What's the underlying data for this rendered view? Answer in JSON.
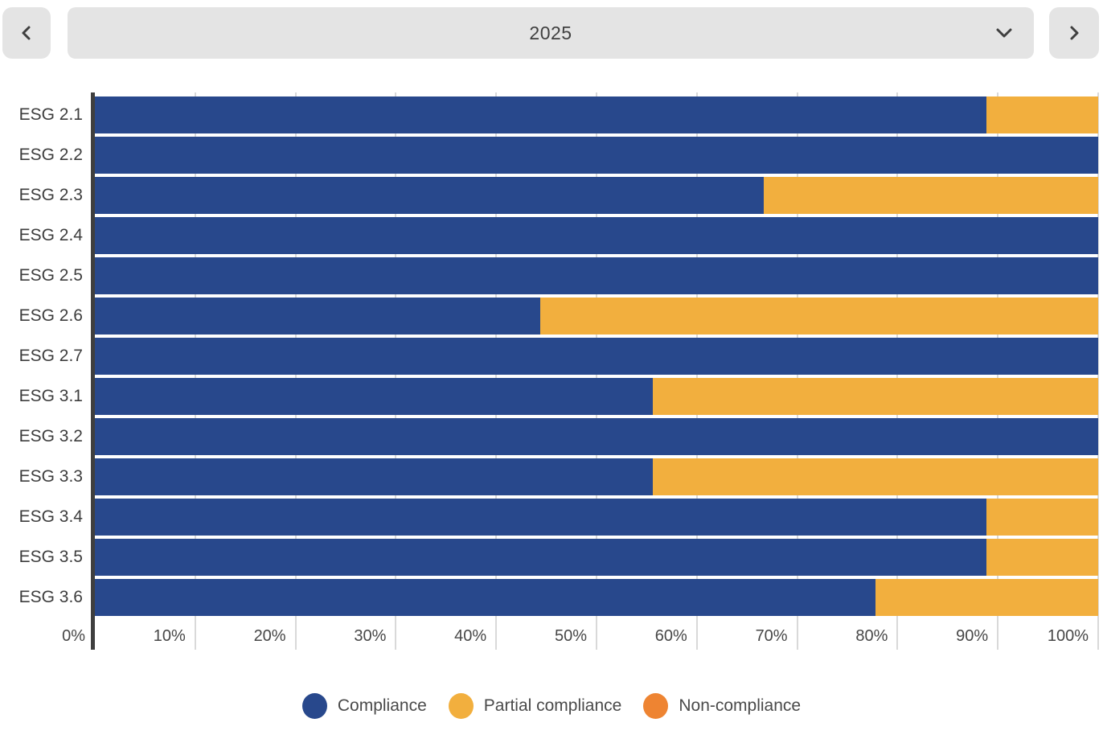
{
  "header": {
    "prev_button": {
      "icon": "chevron-left"
    },
    "year_selector": {
      "value": "2025",
      "icon": "chevron-down"
    },
    "next_button": {
      "icon": "chevron-right"
    }
  },
  "chart_data": {
    "type": "bar",
    "orientation": "horizontal",
    "stacked": true,
    "unit": "%",
    "categories": [
      "ESG 2.1",
      "ESG 2.2",
      "ESG 2.3",
      "ESG 2.4",
      "ESG 2.5",
      "ESG 2.6",
      "ESG 2.7",
      "ESG 3.1",
      "ESG 3.2",
      "ESG 3.3",
      "ESG 3.4",
      "ESG 3.5",
      "ESG 3.6"
    ],
    "series": [
      {
        "name": "Compliance",
        "color": "#28488C",
        "values": [
          88.9,
          100,
          66.7,
          100,
          100,
          44.4,
          100,
          55.6,
          100,
          55.6,
          88.9,
          88.9,
          77.8
        ]
      },
      {
        "name": "Partial compliance",
        "color": "#F2AF3E",
        "values": [
          11.1,
          0,
          33.3,
          0,
          0,
          55.6,
          0,
          44.4,
          0,
          44.4,
          11.1,
          11.1,
          22.2
        ]
      },
      {
        "name": "Non-compliance",
        "color": "#EE8432",
        "values": [
          0,
          0,
          0,
          0,
          0,
          0,
          0,
          0,
          0,
          0,
          0,
          0,
          0
        ]
      }
    ],
    "x_ticks": [
      "0%",
      "10%",
      "20%",
      "30%",
      "40%",
      "50%",
      "60%",
      "70%",
      "80%",
      "90%",
      "100%"
    ],
    "xlim": [
      0,
      100
    ],
    "grid": true,
    "legend_position": "bottom"
  },
  "legend": {
    "items": [
      {
        "label": "Compliance",
        "color": "#28488C"
      },
      {
        "label": "Partial compliance",
        "color": "#F2AF3E"
      },
      {
        "label": "Non-compliance",
        "color": "#EE8432"
      }
    ]
  },
  "colors": {
    "control_bg": "#E4E4E4",
    "control_icon": "#3F3F3F",
    "axis_line": "#3F3F3F",
    "gridline": "#D9D9D9",
    "tick_text": "#474747",
    "category_text": "#3D3D3D",
    "legend_text": "#4A4A4A"
  }
}
